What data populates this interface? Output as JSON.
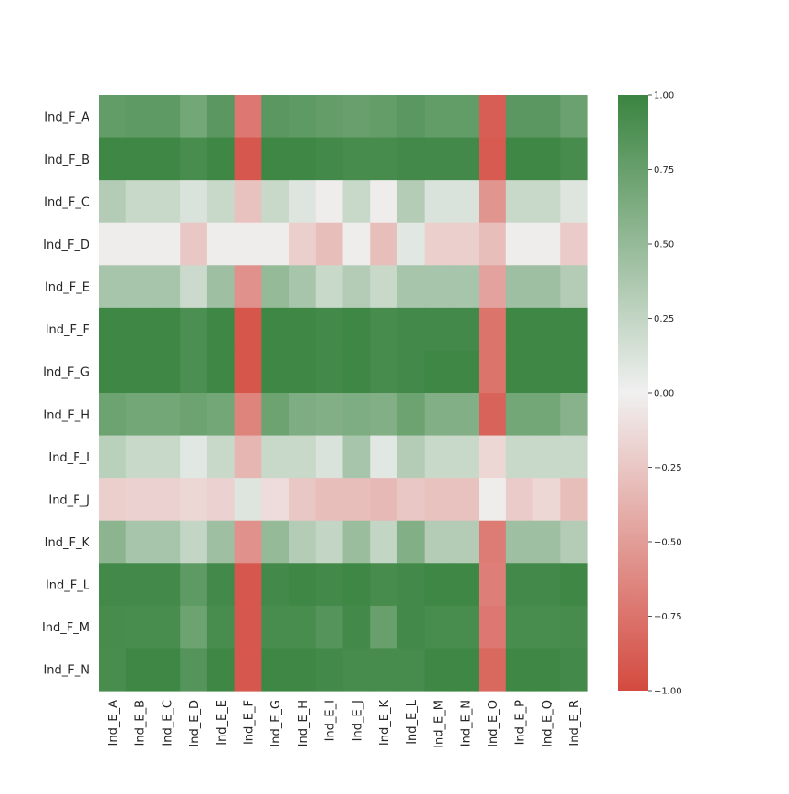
{
  "chart_data": {
    "type": "heatmap",
    "rows": [
      "Ind_F_A",
      "Ind_F_B",
      "Ind_F_C",
      "Ind_F_D",
      "Ind_F_E",
      "Ind_F_F",
      "Ind_F_G",
      "Ind_F_H",
      "Ind_F_I",
      "Ind_F_J",
      "Ind_F_K",
      "Ind_F_L",
      "Ind_F_M",
      "Ind_F_N"
    ],
    "columns": [
      "Ind_E_A",
      "Ind_E_B",
      "Ind_E_C",
      "Ind_E_D",
      "Ind_E_E",
      "Ind_E_F",
      "Ind_E_G",
      "Ind_E_H",
      "Ind_E_I",
      "Ind_E_J",
      "Ind_E_K",
      "Ind_E_L",
      "Ind_E_M",
      "Ind_E_N",
      "Ind_E_O",
      "Ind_E_P",
      "Ind_E_Q",
      "Ind_E_R"
    ],
    "values": [
      [
        0.78,
        0.8,
        0.8,
        0.68,
        0.82,
        -0.72,
        0.82,
        0.8,
        0.77,
        0.75,
        0.77,
        0.82,
        0.78,
        0.78,
        -0.88,
        0.82,
        0.82,
        0.73
      ],
      [
        0.97,
        0.97,
        0.97,
        0.92,
        0.97,
        -0.92,
        0.97,
        0.97,
        0.95,
        0.93,
        0.93,
        0.95,
        0.95,
        0.95,
        -0.9,
        0.97,
        0.97,
        0.93
      ],
      [
        0.33,
        0.22,
        0.22,
        0.12,
        0.22,
        -0.28,
        0.22,
        0.1,
        -0.02,
        0.22,
        -0.02,
        0.33,
        0.12,
        0.12,
        -0.55,
        0.22,
        0.22,
        0.1
      ],
      [
        -0.02,
        -0.02,
        -0.02,
        -0.25,
        -0.02,
        -0.02,
        -0.02,
        -0.2,
        -0.3,
        -0.02,
        -0.3,
        0.08,
        -0.2,
        -0.2,
        -0.3,
        -0.02,
        -0.02,
        -0.22
      ],
      [
        0.4,
        0.4,
        0.4,
        0.2,
        0.45,
        -0.57,
        0.5,
        0.4,
        0.22,
        0.33,
        0.22,
        0.4,
        0.4,
        0.4,
        -0.47,
        0.45,
        0.45,
        0.33
      ],
      [
        0.97,
        0.97,
        0.97,
        0.9,
        0.97,
        -0.93,
        0.97,
        0.97,
        0.95,
        0.97,
        0.93,
        0.95,
        0.95,
        0.95,
        -0.75,
        0.97,
        0.97,
        0.97
      ],
      [
        0.97,
        0.97,
        0.97,
        0.9,
        0.97,
        -0.93,
        0.97,
        0.97,
        0.95,
        0.97,
        0.93,
        0.95,
        0.97,
        0.97,
        -0.75,
        0.97,
        0.97,
        0.97
      ],
      [
        0.72,
        0.68,
        0.68,
        0.72,
        0.68,
        -0.65,
        0.72,
        0.62,
        0.6,
        0.62,
        0.6,
        0.72,
        0.6,
        0.6,
        -0.85,
        0.68,
        0.68,
        0.57
      ],
      [
        0.3,
        0.22,
        0.22,
        0.08,
        0.22,
        -0.35,
        0.22,
        0.22,
        0.12,
        0.4,
        0.08,
        0.33,
        0.22,
        0.22,
        -0.15,
        0.22,
        0.22,
        0.22
      ],
      [
        -0.2,
        -0.18,
        -0.18,
        -0.15,
        -0.18,
        0.1,
        -0.12,
        -0.25,
        -0.3,
        -0.3,
        -0.33,
        -0.25,
        -0.28,
        -0.28,
        -0.02,
        -0.22,
        -0.15,
        -0.3
      ],
      [
        0.55,
        0.4,
        0.4,
        0.25,
        0.45,
        -0.57,
        0.5,
        0.33,
        0.25,
        0.47,
        0.25,
        0.6,
        0.33,
        0.33,
        -0.7,
        0.45,
        0.45,
        0.33
      ],
      [
        0.95,
        0.95,
        0.95,
        0.8,
        0.95,
        -0.92,
        0.95,
        0.97,
        0.95,
        0.97,
        0.93,
        0.95,
        0.97,
        0.97,
        -0.68,
        0.95,
        0.95,
        0.97
      ],
      [
        0.93,
        0.92,
        0.92,
        0.72,
        0.92,
        -0.92,
        0.92,
        0.92,
        0.85,
        0.95,
        0.75,
        0.95,
        0.92,
        0.92,
        -0.72,
        0.92,
        0.92,
        0.93
      ],
      [
        0.92,
        0.97,
        0.97,
        0.85,
        0.97,
        -0.92,
        0.97,
        0.97,
        0.95,
        0.93,
        0.93,
        0.93,
        0.97,
        0.97,
        -0.82,
        0.97,
        0.97,
        0.95
      ]
    ],
    "vmin": -1.0,
    "vmax": 1.0,
    "colormap": {
      "low": "#d44a3f",
      "mid": "#f0f0f0",
      "high": "#3a8440"
    },
    "colorbar_ticks": [
      "1.00",
      "0.75",
      "0.50",
      "0.25",
      "0.00",
      "−0.25",
      "−0.50",
      "−0.75",
      "−1.00"
    ],
    "colorbar_tick_values": [
      1.0,
      0.75,
      0.5,
      0.25,
      0.0,
      -0.25,
      -0.5,
      -0.75,
      -1.0
    ],
    "title": "",
    "xlabel": "",
    "ylabel": "",
    "grid": false,
    "colorbar_placement": "right"
  }
}
